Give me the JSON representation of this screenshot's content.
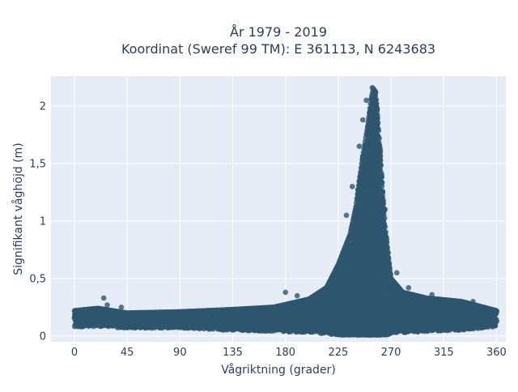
{
  "chart_data": {
    "type": "scatter",
    "title_lines": [
      "År 1979 - 2019",
      "Koordinat (Sweref 99 TM): E 361113, N 6243683"
    ],
    "xlabel": "Vågriktning (grader)",
    "ylabel": "Signifikant våghöjd (m)",
    "xlim": [
      -20,
      368
    ],
    "ylim": [
      -0.05,
      2.26
    ],
    "xticks": [
      0,
      45,
      90,
      135,
      180,
      225,
      270,
      315,
      360
    ],
    "xtick_labels": [
      "0",
      "45",
      "90",
      "135",
      "180",
      "225",
      "270",
      "315",
      "360"
    ],
    "yticks": [
      0,
      0.5,
      1,
      1.5,
      2
    ],
    "ytick_labels": [
      "0",
      "0,5",
      "1",
      "1,5",
      "2"
    ],
    "grid": true,
    "marker_color": "#2e566e",
    "plot_background": "#e5ecf6",
    "series": [
      {
        "envelope": {
          "direction": [
            0,
            20,
            45,
            90,
            135,
            170,
            200,
            215,
            225,
            235,
            240,
            245,
            250,
            253,
            255,
            257,
            260,
            265,
            270,
            280,
            300,
            330,
            360
          ],
          "max_height": [
            0.22,
            0.24,
            0.2,
            0.21,
            0.23,
            0.25,
            0.32,
            0.42,
            0.62,
            0.88,
            1.12,
            1.5,
            1.82,
            2.06,
            2.15,
            2.12,
            1.72,
            0.95,
            0.5,
            0.38,
            0.33,
            0.3,
            0.22
          ],
          "min_height": [
            0.08,
            0.08,
            0.07,
            0.07,
            0.05,
            0.04,
            0.03,
            0.02,
            0.01,
            0.01,
            0.01,
            0.01,
            0.01,
            0.01,
            0.01,
            0.01,
            0.01,
            0.01,
            0.02,
            0.03,
            0.04,
            0.05,
            0.08
          ]
        },
        "outliers": [
          {
            "x": 25,
            "y": 0.33
          },
          {
            "x": 28,
            "y": 0.27
          },
          {
            "x": 40,
            "y": 0.25
          },
          {
            "x": 180,
            "y": 0.38
          },
          {
            "x": 190,
            "y": 0.35
          },
          {
            "x": 232,
            "y": 1.05
          },
          {
            "x": 237,
            "y": 1.3
          },
          {
            "x": 243,
            "y": 1.65
          },
          {
            "x": 246,
            "y": 1.88
          },
          {
            "x": 249,
            "y": 2.05
          },
          {
            "x": 254,
            "y": 2.16
          },
          {
            "x": 256,
            "y": 2.1
          },
          {
            "x": 258,
            "y": 1.95
          },
          {
            "x": 261,
            "y": 1.6
          },
          {
            "x": 265,
            "y": 1.1
          },
          {
            "x": 275,
            "y": 0.55
          },
          {
            "x": 285,
            "y": 0.42
          },
          {
            "x": 305,
            "y": 0.36
          },
          {
            "x": 340,
            "y": 0.3
          }
        ]
      }
    ]
  }
}
